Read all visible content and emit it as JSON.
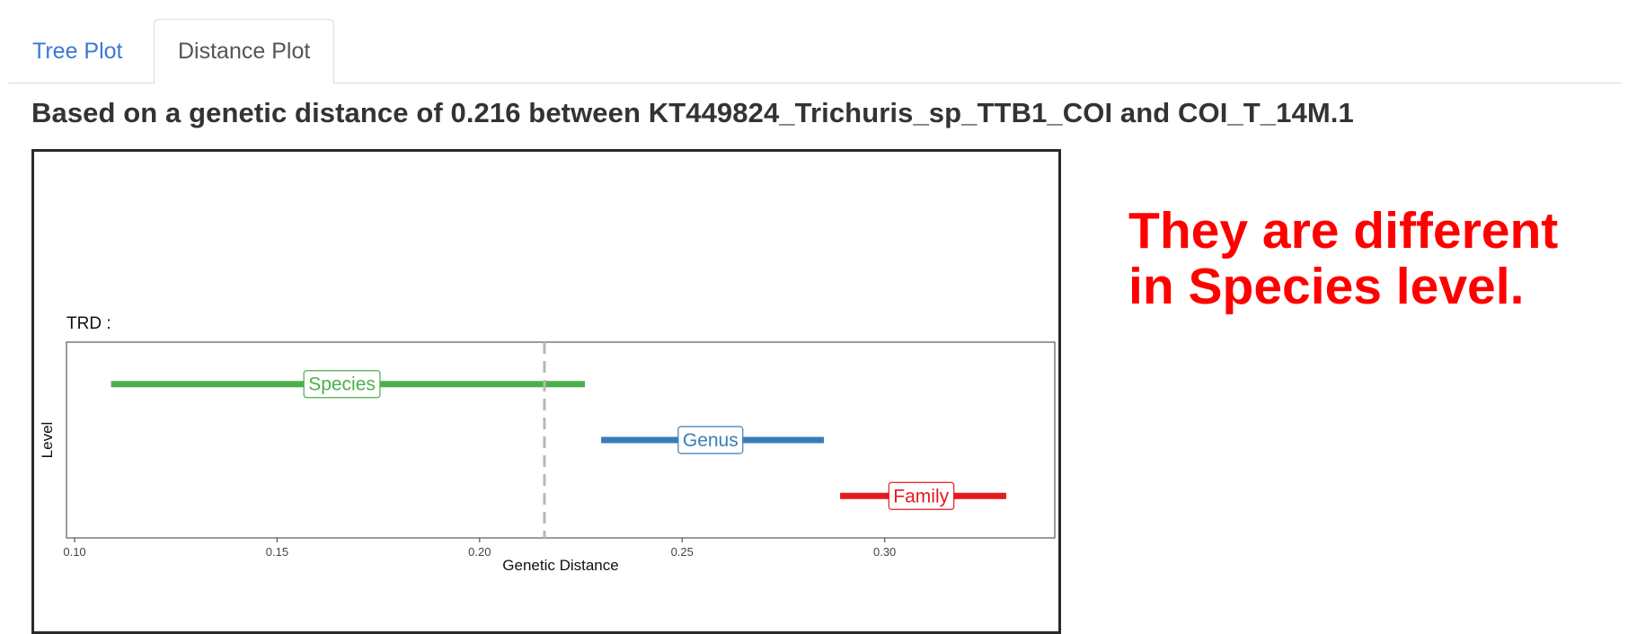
{
  "tabs": [
    {
      "label": "Tree Plot",
      "active": false
    },
    {
      "label": "Distance Plot",
      "active": true
    }
  ],
  "headline": "Based on a genetic distance of 0.216 between KT449824_Trichuris_sp_TTB1_COI and COI_T_14M.1",
  "verdict": {
    "line1": "They are different",
    "line2": "in Species level.",
    "color": "#ff0000"
  },
  "chart_data": {
    "type": "range",
    "panel_title": "TRD :",
    "xlabel": "Genetic Distance",
    "ylabel": "Level",
    "xlim": [
      0.098,
      0.342
    ],
    "x_ticks": [
      0.1,
      0.15,
      0.2,
      0.25,
      0.3
    ],
    "x_tick_labels": [
      "0.10",
      "0.15",
      "0.20",
      "0.25",
      "0.30"
    ],
    "reference_line": {
      "x": 0.216,
      "style": "dashed",
      "color": "#b8b8b8"
    },
    "series": [
      {
        "name": "Species",
        "start": 0.109,
        "end": 0.226,
        "label_x": 0.166,
        "color": "#4daf4a"
      },
      {
        "name": "Genus",
        "start": 0.23,
        "end": 0.285,
        "label_x": 0.257,
        "color": "#377eb8"
      },
      {
        "name": "Family",
        "start": 0.289,
        "end": 0.33,
        "label_x": 0.309,
        "color": "#e41a1c"
      }
    ]
  }
}
